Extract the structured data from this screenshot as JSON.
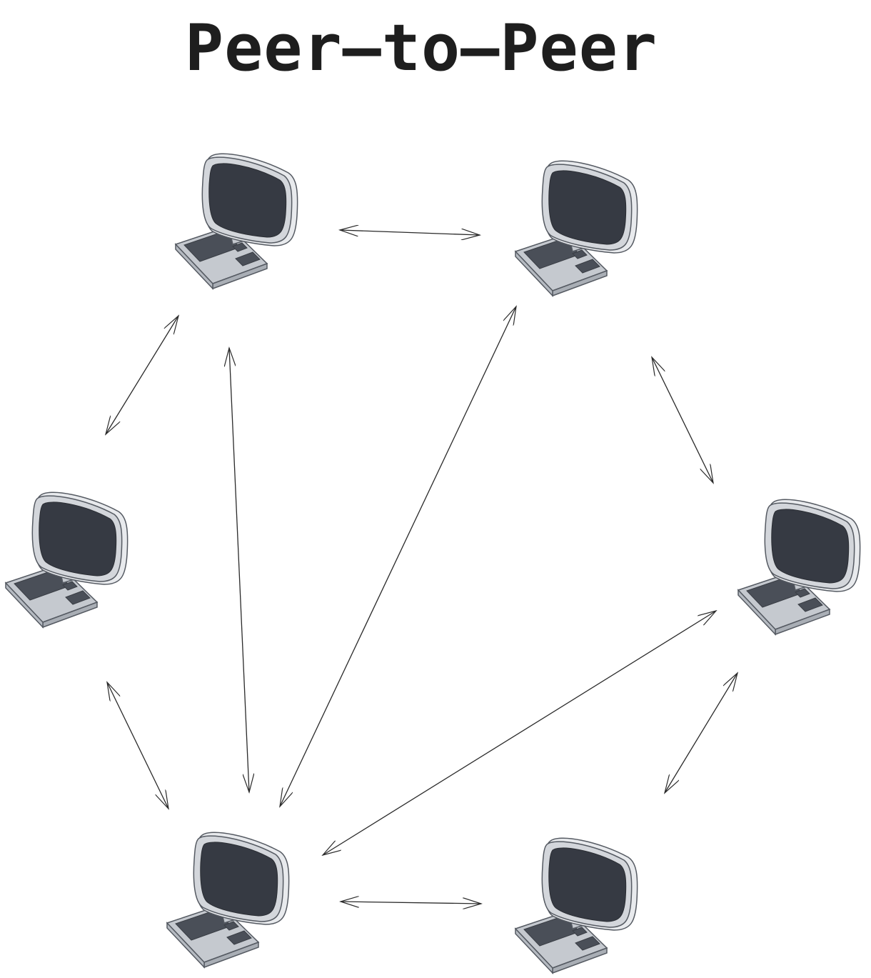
{
  "diagram": {
    "title": "Peer–to–Peer",
    "node_icon": "desktop-computer-icon",
    "nodes": [
      {
        "id": "peer-top-left"
      },
      {
        "id": "peer-top-right"
      },
      {
        "id": "peer-left"
      },
      {
        "id": "peer-right"
      },
      {
        "id": "peer-bottom-left"
      },
      {
        "id": "peer-bottom-right"
      }
    ],
    "links": [
      {
        "from": "peer-top-left",
        "to": "peer-top-right",
        "direction": "both"
      },
      {
        "from": "peer-top-left",
        "to": "peer-left",
        "direction": "both"
      },
      {
        "from": "peer-top-left",
        "to": "peer-bottom-left",
        "direction": "both"
      },
      {
        "from": "peer-top-right",
        "to": "peer-bottom-left",
        "direction": "both"
      },
      {
        "from": "peer-top-right",
        "to": "peer-right",
        "direction": "both"
      },
      {
        "from": "peer-left",
        "to": "peer-bottom-left",
        "direction": "both"
      },
      {
        "from": "peer-right",
        "to": "peer-bottom-left",
        "direction": "both"
      },
      {
        "from": "peer-right",
        "to": "peer-bottom-right",
        "direction": "both"
      },
      {
        "from": "peer-bottom-left",
        "to": "peer-bottom-right",
        "direction": "both"
      }
    ],
    "colors": {
      "screen": "#363a43",
      "bezel": "#d3d6db",
      "keyboard_body": "#d3d6db",
      "keys": "#4a4f58",
      "outline": "#555a62",
      "arrow": "#2a2a2a",
      "title": "#1e1e1e"
    }
  }
}
